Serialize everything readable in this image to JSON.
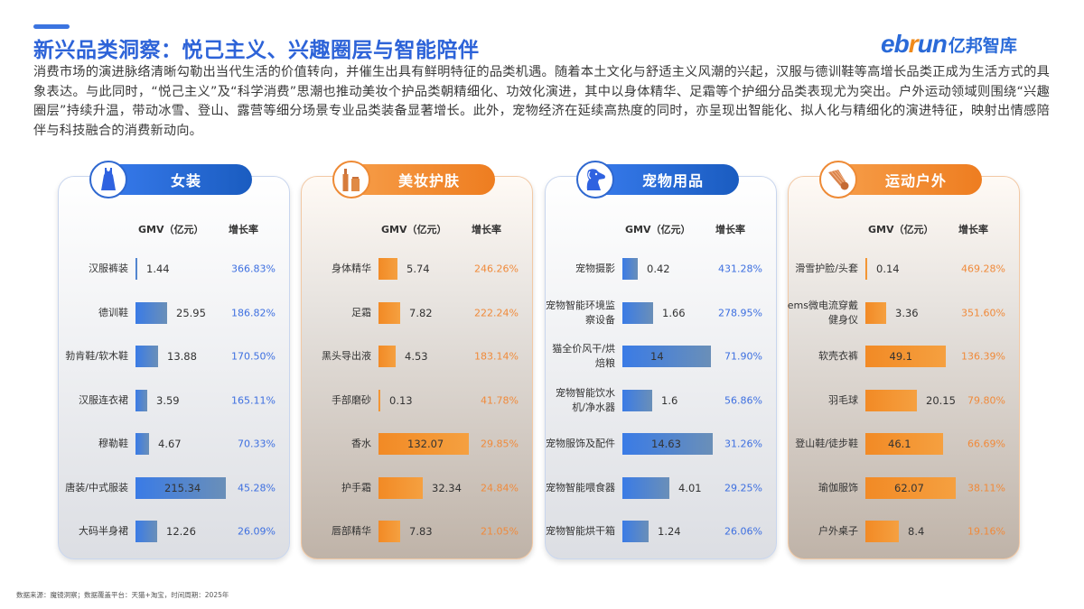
{
  "header": {
    "title": "新兴品类洞察：悦己主义、兴趣圈层与智能陪伴",
    "logo_latin_a": "eb",
    "logo_latin_b": "r",
    "logo_latin_c": "un",
    "logo_cn": "亿邦智库"
  },
  "intro": "消费市场的演进脉络清晰勾勒出当代生活的价值转向，并催生出具有鲜明特征的品类机遇。随着本土文化与舒适主义风潮的兴起，汉服与德训鞋等高增长品类正成为生活方式的具象表达。与此同时，“悦己主义”及“科学消费”思潮也推动美妆个护品类朝精细化、功效化演进，其中以身体精华、足霜等个护细分品类表现尤为突出。户外运动领域则围绕“兴趣圈层”持续升温，带动冰雪、登山、露营等细分场景专业品类装备显著增长。此外，宠物经济在延续高热度的同时，亦呈现出智能化、拟人化与精细化的演进特征，映射出情感陪伴与科技融合的消费新动向。",
  "col_headers": {
    "gmv": "GMV（亿元）",
    "rate": "增长率"
  },
  "colors": {
    "blue": "#2f68d0",
    "orange": "#ee7d20",
    "title": "#2d63d8"
  },
  "panels": [
    {
      "title": "女装",
      "icon": "dress-icon",
      "theme": "blue",
      "rows": [
        {
          "name": "汉服裤装",
          "gmv": "1.44",
          "rate": "366.83%"
        },
        {
          "name": "德训鞋",
          "gmv": "25.95",
          "rate": "186.82%"
        },
        {
          "name": "勃肯鞋/软木鞋",
          "gmv": "13.88",
          "rate": "170.50%"
        },
        {
          "name": "汉服连衣裙",
          "gmv": "3.59",
          "rate": "165.11%"
        },
        {
          "name": "穆勒鞋",
          "gmv": "4.67",
          "rate": "70.33%"
        },
        {
          "name": "唐装/中式服装",
          "gmv": "215.34",
          "rate": "45.28%"
        },
        {
          "name": "大码半身裙",
          "gmv": "12.26",
          "rate": "26.09%"
        }
      ]
    },
    {
      "title": "美妆护肤",
      "icon": "cosmetics-icon",
      "theme": "orange",
      "rows": [
        {
          "name": "身体精华",
          "gmv": "5.74",
          "rate": "246.26%"
        },
        {
          "name": "足霜",
          "gmv": "7.82",
          "rate": "222.24%"
        },
        {
          "name": "黑头导出液",
          "gmv": "4.53",
          "rate": "183.14%"
        },
        {
          "name": "手部磨砂",
          "gmv": "0.13",
          "rate": "41.78%"
        },
        {
          "name": "香水",
          "gmv": "132.07",
          "rate": "29.85%"
        },
        {
          "name": "护手霜",
          "gmv": "32.34",
          "rate": "24.84%"
        },
        {
          "name": "唇部精华",
          "gmv": "7.83",
          "rate": "21.05%"
        }
      ]
    },
    {
      "title": "宠物用品",
      "icon": "dog-icon",
      "theme": "blue",
      "rows": [
        {
          "name": "宠物摄影",
          "gmv": "0.42",
          "rate": "431.28%"
        },
        {
          "name": "宠物智能环境监察设备",
          "gmv": "1.66",
          "rate": "278.95%"
        },
        {
          "name": "猫全价风干/烘焙粮",
          "gmv": "14",
          "rate": "71.90%"
        },
        {
          "name": "宠物智能饮水机/净水器",
          "gmv": "1.6",
          "rate": "56.86%"
        },
        {
          "name": "宠物服饰及配件",
          "gmv": "14.63",
          "rate": "31.26%"
        },
        {
          "name": "宠物智能喂食器",
          "gmv": "4.01",
          "rate": "29.25%"
        },
        {
          "name": "宠物智能烘干箱",
          "gmv": "1.24",
          "rate": "26.06%"
        }
      ]
    },
    {
      "title": "运动户外",
      "icon": "shuttlecock-icon",
      "theme": "orange",
      "rows": [
        {
          "name": "滑雪护脸/头套",
          "gmv": "0.14",
          "rate": "469.28%"
        },
        {
          "name": "ems微电流穿戴健身仪",
          "gmv": "3.36",
          "rate": "351.60%"
        },
        {
          "name": "软壳衣裤",
          "gmv": "49.1",
          "rate": "136.39%"
        },
        {
          "name": "羽毛球",
          "gmv": "20.15",
          "rate": "79.80%"
        },
        {
          "name": "登山鞋/徒步鞋",
          "gmv": "46.1",
          "rate": "66.69%"
        },
        {
          "name": "瑜伽服饰",
          "gmv": "62.07",
          "rate": "38.11%"
        },
        {
          "name": "户外桌子",
          "gmv": "8.4",
          "rate": "19.16%"
        }
      ]
    }
  ],
  "footer": "数据来源：魔镜洞察；数据覆盖平台：天猫+淘宝，时间周期：2025年",
  "chart_data": [
    {
      "type": "bar",
      "title": "女装",
      "categories": [
        "汉服裤装",
        "德训鞋",
        "勃肯鞋/软木鞋",
        "汉服连衣裙",
        "穆勒鞋",
        "唐装/中式服装",
        "大码半身裙"
      ],
      "series": [
        {
          "name": "GMV（亿元）",
          "values": [
            1.44,
            25.95,
            13.88,
            3.59,
            4.67,
            215.34,
            12.26
          ]
        },
        {
          "name": "增长率(%)",
          "values": [
            366.83,
            186.82,
            170.5,
            165.11,
            70.33,
            45.28,
            26.09
          ]
        }
      ]
    },
    {
      "type": "bar",
      "title": "美妆护肤",
      "categories": [
        "身体精华",
        "足霜",
        "黑头导出液",
        "手部磨砂",
        "香水",
        "护手霜",
        "唇部精华"
      ],
      "series": [
        {
          "name": "GMV（亿元）",
          "values": [
            5.74,
            7.82,
            4.53,
            0.13,
            132.07,
            32.34,
            7.83
          ]
        },
        {
          "name": "增长率(%)",
          "values": [
            246.26,
            222.24,
            183.14,
            41.78,
            29.85,
            24.84,
            21.05
          ]
        }
      ]
    },
    {
      "type": "bar",
      "title": "宠物用品",
      "categories": [
        "宠物摄影",
        "宠物智能环境监察设备",
        "猫全价风干/烘焙粮",
        "宠物智能饮水机/净水器",
        "宠物服饰及配件",
        "宠物智能喂食器",
        "宠物智能烘干箱"
      ],
      "series": [
        {
          "name": "GMV（亿元）",
          "values": [
            0.42,
            1.66,
            14,
            1.6,
            14.63,
            4.01,
            1.24
          ]
        },
        {
          "name": "增长率(%)",
          "values": [
            431.28,
            278.95,
            71.9,
            56.86,
            31.26,
            29.25,
            26.06
          ]
        }
      ]
    },
    {
      "type": "bar",
      "title": "运动户外",
      "categories": [
        "滑雪护脸/头套",
        "ems微电流穿戴健身仪",
        "软壳衣裤",
        "羽毛球",
        "登山鞋/徒步鞋",
        "瑜伽服饰",
        "户外桌子"
      ],
      "series": [
        {
          "name": "GMV（亿元）",
          "values": [
            0.14,
            3.36,
            49.1,
            20.15,
            46.1,
            62.07,
            8.4
          ]
        },
        {
          "name": "增长率(%)",
          "values": [
            469.28,
            351.6,
            136.39,
            79.8,
            66.69,
            38.11,
            19.16
          ]
        }
      ]
    }
  ]
}
